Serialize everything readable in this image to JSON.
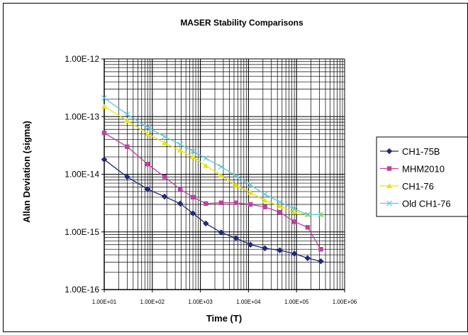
{
  "chart_data": {
    "type": "line",
    "title": "MASER Stability Comparisons",
    "xlabel": "Time (T)",
    "ylabel": "Allan Deviation (sigma)",
    "x_scale": "log",
    "y_scale": "log",
    "xlim": [
      10,
      1000000
    ],
    "ylim": [
      1e-16,
      1e-12
    ],
    "x_ticks": [
      "1.00E+01",
      "1.00E+02",
      "1.00E+03",
      "1.00E+04",
      "1.00E+05",
      "1.00E+06"
    ],
    "y_ticks": [
      "1.00E-16",
      "1.00E-15",
      "1.00E-14",
      "1.00E-13",
      "1.00E-12"
    ],
    "grid": true,
    "legend_position": "right",
    "series": [
      {
        "name": "CH1-75B",
        "color": "#1f2a7a",
        "marker": "diamond",
        "x": [
          10,
          30,
          80,
          180,
          380,
          700,
          1300,
          2700,
          5500,
          11000,
          22000,
          45000,
          90000,
          170000,
          320000
        ],
        "y": [
          1.8e-14,
          9e-15,
          5.5e-15,
          4.1e-15,
          3.1e-15,
          2.1e-15,
          1.4e-15,
          9.8e-16,
          7.8e-16,
          6e-16,
          5.2e-16,
          4.8e-16,
          4.2e-16,
          3.5e-16,
          3.1e-16
        ]
      },
      {
        "name": "MHM2010",
        "color": "#c040a0",
        "marker": "square",
        "x": [
          10,
          30,
          80,
          180,
          380,
          700,
          1300,
          2700,
          5500,
          11000,
          22000,
          45000,
          90000,
          170000,
          320000
        ],
        "y": [
          5.2e-14,
          3e-14,
          1.5e-14,
          9e-15,
          5.5e-15,
          4e-15,
          3.1e-15,
          3.2e-15,
          3.2e-15,
          3e-15,
          2.7e-15,
          2.2e-15,
          1.5e-15,
          1.2e-15,
          5e-16
        ]
      },
      {
        "name": "CH1-76",
        "color": "#e6e600",
        "marker": "triangle",
        "x": [
          10,
          30,
          80,
          180,
          380,
          700,
          1300,
          2700,
          5500,
          11000,
          22000,
          45000,
          90000,
          170000,
          320000
        ],
        "y": [
          1.5e-13,
          8.5e-14,
          5e-14,
          3.5e-14,
          2.6e-14,
          2e-14,
          1.4e-14,
          9.5e-15,
          6.5e-15,
          4.8e-15,
          3.5e-15,
          2.8e-15,
          2.2e-15,
          2e-15,
          2e-15
        ]
      },
      {
        "name": "Old CH1-76",
        "color": "#5cc8d8",
        "marker": "x",
        "x": [
          10,
          30,
          80,
          180,
          380,
          700,
          1300,
          2700,
          5500,
          11000,
          22000,
          45000,
          90000,
          170000,
          320000
        ],
        "y": [
          2.1e-13,
          1.1e-13,
          6.5e-14,
          4.5e-14,
          3.3e-14,
          2.5e-14,
          1.9e-14,
          1.35e-14,
          9.5e-15,
          6.5e-15,
          4.5e-15,
          3.3e-15,
          2.5e-15,
          2e-15,
          2e-15
        ]
      }
    ]
  }
}
